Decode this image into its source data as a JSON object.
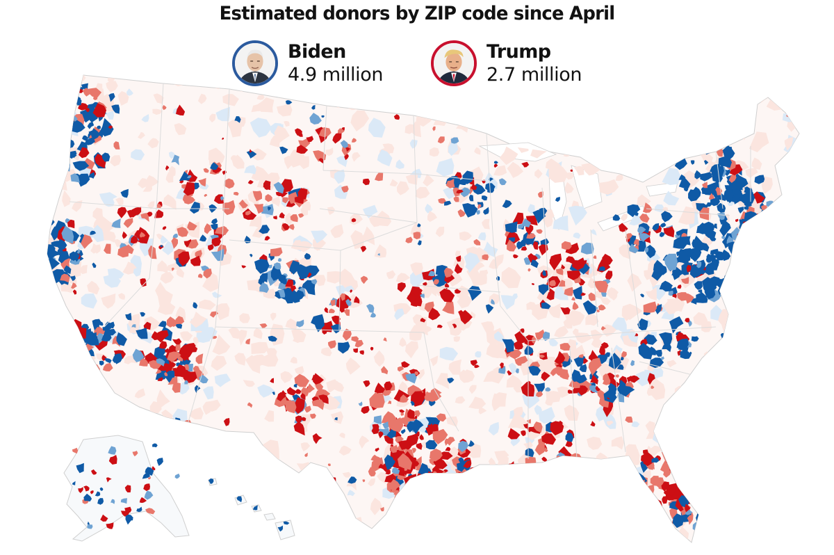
{
  "title": "Estimated donors by ZIP code since April",
  "legend": [
    {
      "name": "Biden",
      "count": "4.9 million",
      "ring_color": "#2b5a9e",
      "icon": "biden-portrait-icon"
    },
    {
      "name": "Trump",
      "count": "2.7 million",
      "ring_color": "#c8102e",
      "icon": "trump-portrait-icon"
    }
  ],
  "colors": {
    "biden_strong": "#0f5aa6",
    "biden_mid": "#6fa3d3",
    "biden_light": "#dbe9f7",
    "trump_strong": "#cc0f14",
    "trump_mid": "#e8776b",
    "trump_light": "#fbe5df",
    "background": "#ffffff",
    "state_border": "#d9d9d9"
  }
}
